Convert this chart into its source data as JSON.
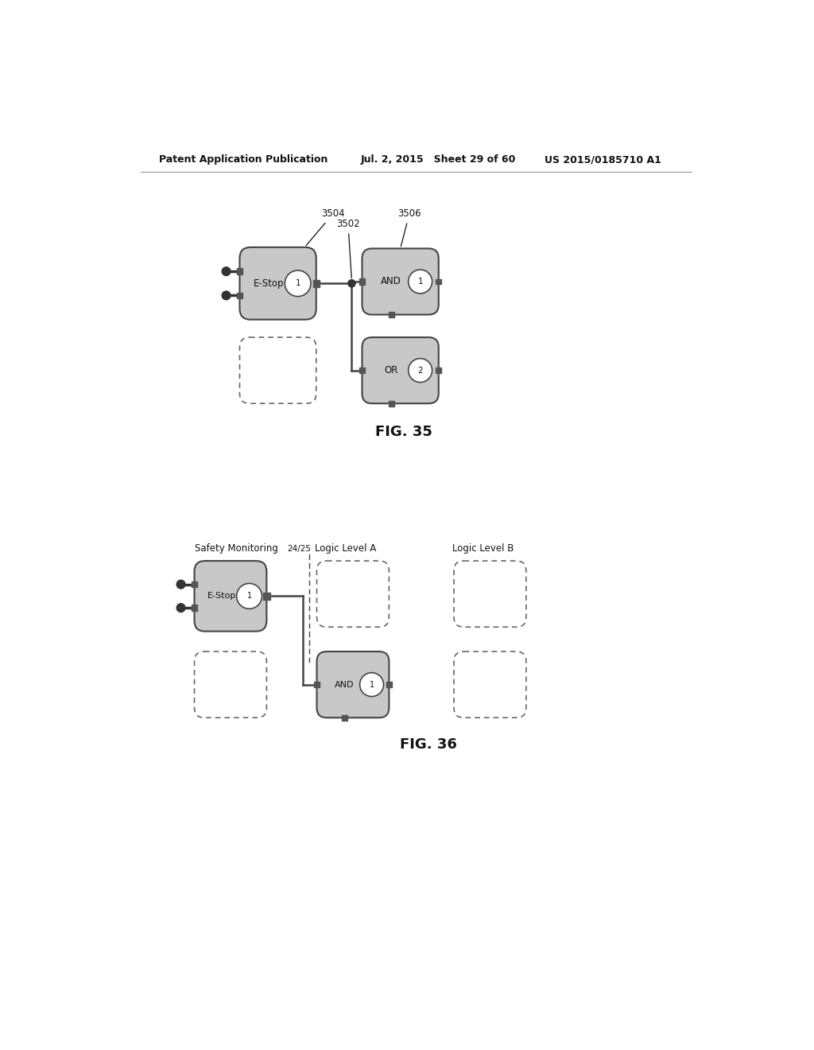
{
  "header_left": "Patent Application Publication",
  "header_mid": "Jul. 2, 2015   Sheet 29 of 60",
  "header_right": "US 2015/0185710 A1",
  "fig35_label": "FIG. 35",
  "fig36_label": "FIG. 36",
  "bg_color": "#ffffff",
  "block_fill": "#c8c8c8",
  "block_edge": "#444444",
  "dashed_fill": "#ffffff",
  "dashed_edge": "#666666",
  "text_color": "#111111",
  "pin_color": "#333333",
  "connector_color": "#555555"
}
